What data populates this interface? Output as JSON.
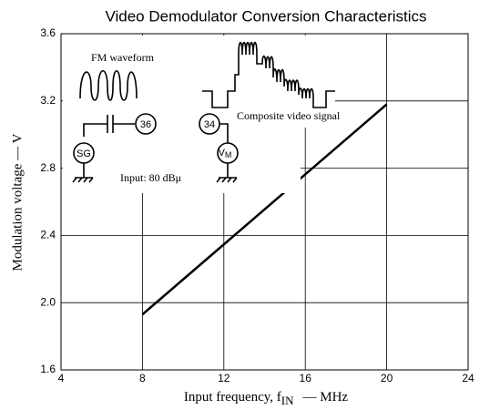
{
  "chart_data": {
    "type": "line",
    "title": "Video Demodulator Conversion Characteristics",
    "ylabel": "Modulation voltage  —  V",
    "xlabel_prefix": "Input frequency, f",
    "xlabel_sub": "IN",
    "xlabel_suffix": "—   MHz",
    "x": [
      8,
      20
    ],
    "series": [
      {
        "name": "Modulation voltage",
        "color": "#000000",
        "values": [
          1.93,
          3.18
        ]
      }
    ],
    "xlim": [
      4,
      24
    ],
    "xticks": [
      4,
      8,
      12,
      16,
      20,
      24
    ],
    "ylim": [
      1.6,
      3.6
    ],
    "yticks": [
      1.6,
      {
        "value": 2,
        "label": "2.0"
      },
      2.4,
      2.8,
      3.2,
      3.6
    ],
    "grid": true
  },
  "diagram": {
    "fm_label": "FM waveform",
    "pin_in": "36",
    "pin_out": "34",
    "source": "SG",
    "meter": "V",
    "meter_sub": "M",
    "video_label": "Composite video signal",
    "input_label": "Input: 80 dBμ"
  }
}
